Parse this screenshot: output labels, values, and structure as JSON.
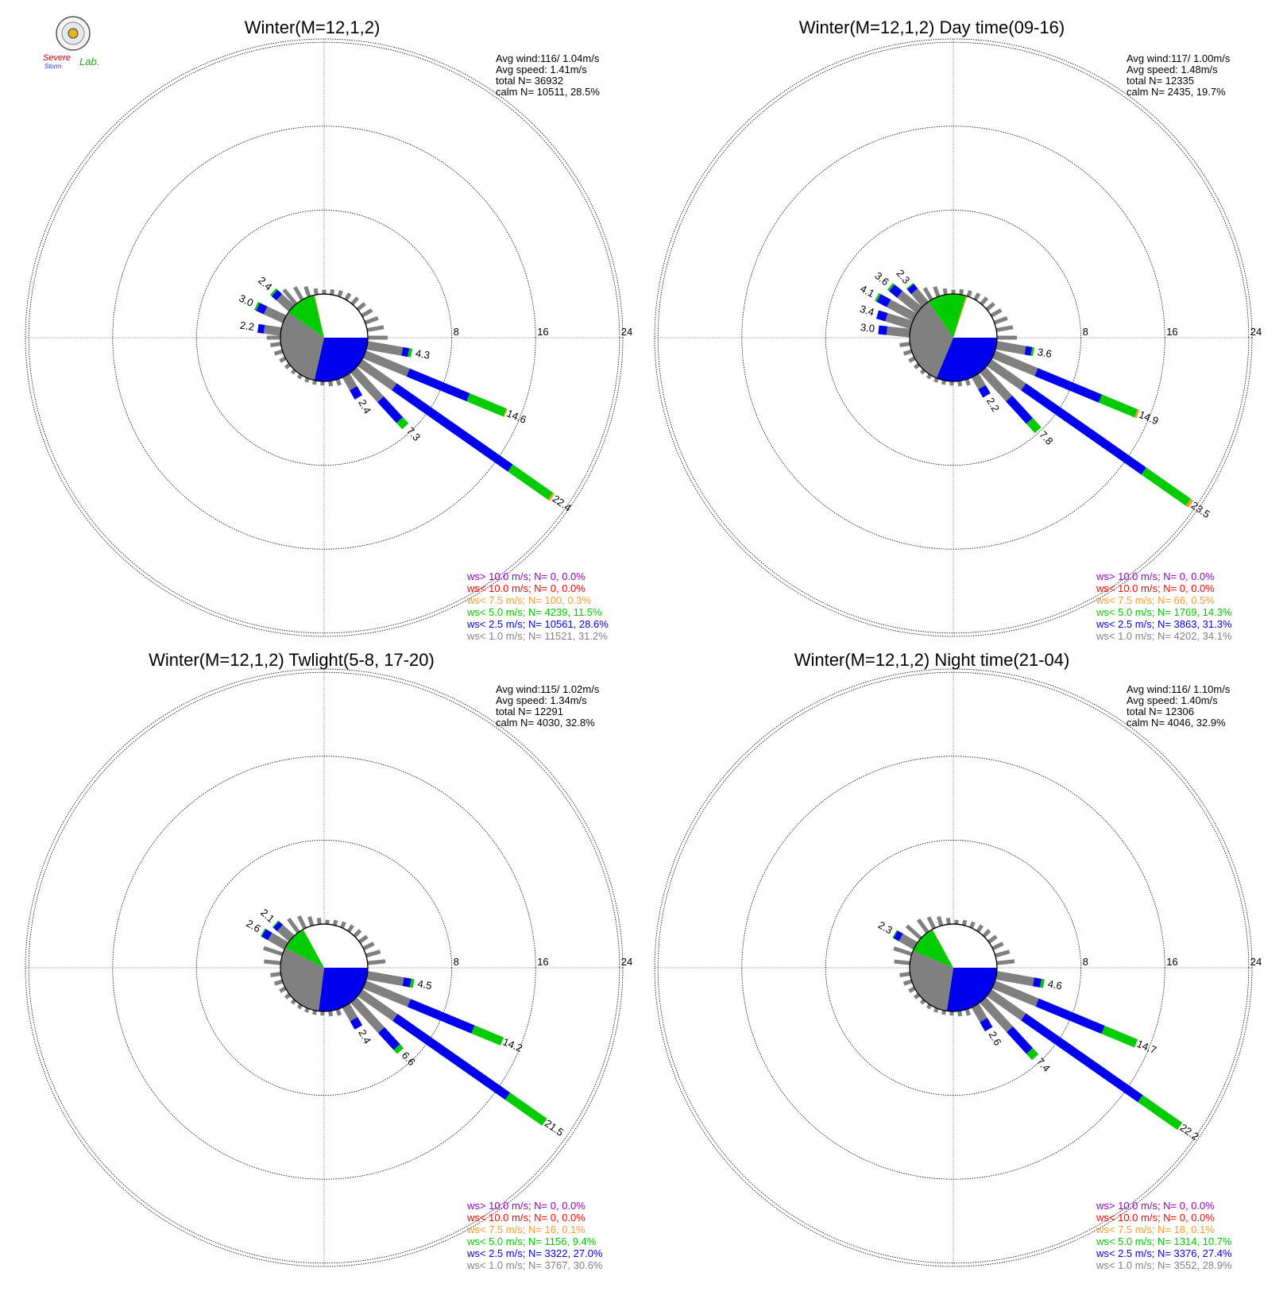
{
  "colors": {
    "calm_fill": "#808080",
    "ws_gt_10": "#9900cc",
    "ws_lt_10": "#ff0000",
    "ws_lt_7_5": "#ff9933",
    "ws_lt_5": "#00cc00",
    "ws_lt_2_5": "#0000ee",
    "ws_lt_1": "#808080",
    "ring": "#000000",
    "axis": "#777777"
  },
  "logo": {
    "text_severe": "Severe",
    "text_storm": "Storm",
    "text_lab": "Lab."
  },
  "chart_data": [
    {
      "type": "wind-rose",
      "title": "Winter(M=12,1,2)",
      "ring_labels": [
        "8",
        "16",
        "24"
      ],
      "stats": [
        "Avg wind:116/ 1.04m/s",
        "Avg speed: 1.41m/s",
        "total N=      36932",
        "calm N=  10511,  28.5%"
      ],
      "calm_pct": 28.5,
      "legend": [
        {
          "key": "ws_gt_10",
          "text": "ws> 10.0 m/s; N=      0,  0.0%"
        },
        {
          "key": "ws_lt_10",
          "text": "ws< 10.0 m/s; N=      0,  0.0%"
        },
        {
          "key": "ws_lt_7_5",
          "text": "ws<  7.5 m/s; N=    100,  0.3%"
        },
        {
          "key": "ws_lt_5",
          "text": "ws<  5.0 m/s; N=  4239, 11.5%"
        },
        {
          "key": "ws_lt_2_5",
          "text": "ws<  2.5 m/s; N= 10561, 28.6%"
        },
        {
          "key": "ws_lt_1",
          "text": "ws<  1.0 m/s; N= 11521, 31.2%"
        }
      ],
      "pie": [
        {
          "key": "ws_lt_2_5",
          "pct": 28.6
        },
        {
          "key": "ws_lt_1",
          "pct": 31.2
        },
        {
          "key": "ws_lt_5",
          "pct": 11.5
        },
        {
          "key": "ws_lt_7_5",
          "pct": 0.3
        }
      ],
      "spokes": [
        {
          "dir": 100,
          "total": 4.3,
          "label": "4.3",
          "parts": [
            3.4,
            0.6,
            0.3,
            0
          ]
        },
        {
          "dir": 112.5,
          "total": 14.6,
          "label": "14.6",
          "parts": [
            4.5,
            6.2,
            3.8,
            0.1
          ]
        },
        {
          "dir": 125,
          "total": 22.4,
          "label": "22.4",
          "parts": [
            4.0,
            13.5,
            4.7,
            0.2
          ]
        },
        {
          "dir": 137.5,
          "total": 7.3,
          "label": "7.3",
          "parts": [
            3.8,
            2.7,
            0.8,
            0
          ]
        },
        {
          "dir": 150,
          "total": 2.4,
          "label": "2.4",
          "parts": [
            1.4,
            1.0,
            0,
            0
          ]
        },
        {
          "dir": 278,
          "total": 2.2,
          "label": "2.2",
          "parts": [
            1.6,
            0.6,
            0,
            0
          ]
        },
        {
          "dir": 295,
          "total": 3.0,
          "label": "3.0",
          "parts": [
            2.0,
            0.8,
            0.2,
            0
          ]
        },
        {
          "dir": 312,
          "total": 2.4,
          "label": "2.4",
          "parts": [
            1.6,
            0.6,
            0.2,
            0
          ]
        }
      ],
      "small_spokes": [
        {
          "dir": 320,
          "value": 1.8
        },
        {
          "dir": 330,
          "value": 1.4
        },
        {
          "dir": 340,
          "value": 1.0
        },
        {
          "dir": 350,
          "value": 0.6
        },
        {
          "dir": 0,
          "value": 0.4
        },
        {
          "dir": 10,
          "value": 0.5
        },
        {
          "dir": 20,
          "value": 0.6
        },
        {
          "dir": 30,
          "value": 0.7
        },
        {
          "dir": 40,
          "value": 0.8
        },
        {
          "dir": 50,
          "value": 0.9
        },
        {
          "dir": 60,
          "value": 1.1
        },
        {
          "dir": 70,
          "value": 1.3
        },
        {
          "dir": 80,
          "value": 1.6
        },
        {
          "dir": 90,
          "value": 1.9
        },
        {
          "dir": 162,
          "value": 0.6
        },
        {
          "dir": 172,
          "value": 0.5
        },
        {
          "dir": 182,
          "value": 0.4
        },
        {
          "dir": 192,
          "value": 0.4
        },
        {
          "dir": 202,
          "value": 0.4
        },
        {
          "dir": 212,
          "value": 0.4
        },
        {
          "dir": 222,
          "value": 0.4
        },
        {
          "dir": 232,
          "value": 0.5
        },
        {
          "dir": 242,
          "value": 0.6
        },
        {
          "dir": 252,
          "value": 0.8
        },
        {
          "dir": 262,
          "value": 1.0
        },
        {
          "dir": 270,
          "value": 1.3
        }
      ]
    },
    {
      "type": "wind-rose",
      "title": "Winter(M=12,1,2) Day time(09-16)",
      "ring_labels": [
        "8",
        "16",
        "24"
      ],
      "stats": [
        "Avg wind:117/ 1.00m/s",
        "Avg speed: 1.48m/s",
        "total N=      12335",
        "calm N=   2435,  19.7%"
      ],
      "calm_pct": 19.7,
      "legend": [
        {
          "key": "ws_gt_10",
          "text": "ws> 10.0 m/s; N=      0,  0.0%"
        },
        {
          "key": "ws_lt_10",
          "text": "ws< 10.0 m/s; N=      0,  0.0%"
        },
        {
          "key": "ws_lt_7_5",
          "text": "ws<  7.5 m/s; N=     66,  0.5%"
        },
        {
          "key": "ws_lt_5",
          "text": "ws<  5.0 m/s; N=  1769, 14.3%"
        },
        {
          "key": "ws_lt_2_5",
          "text": "ws<  2.5 m/s; N=  3863, 31.3%"
        },
        {
          "key": "ws_lt_1",
          "text": "ws<  1.0 m/s; N=  4202, 34.1%"
        }
      ],
      "pie": [
        {
          "key": "ws_lt_2_5",
          "pct": 31.3
        },
        {
          "key": "ws_lt_1",
          "pct": 34.1
        },
        {
          "key": "ws_lt_5",
          "pct": 14.3
        },
        {
          "key": "ws_lt_7_5",
          "pct": 0.5
        }
      ],
      "spokes": [
        {
          "dir": 100,
          "total": 3.6,
          "label": "3.6",
          "parts": [
            2.8,
            0.6,
            0.2,
            0
          ]
        },
        {
          "dir": 112.5,
          "total": 14.9,
          "label": "14.9",
          "parts": [
            4.4,
            6.6,
            3.7,
            0.2
          ]
        },
        {
          "dir": 125,
          "total": 23.5,
          "label": "23.5",
          "parts": [
            4.0,
            14.0,
            5.2,
            0.3
          ]
        },
        {
          "dir": 137.5,
          "total": 7.8,
          "label": "7.8",
          "parts": [
            3.7,
            2.9,
            1.2,
            0
          ]
        },
        {
          "dir": 150,
          "total": 2.2,
          "label": "2.2",
          "parts": [
            1.3,
            0.9,
            0,
            0
          ]
        },
        {
          "dir": 276,
          "total": 3.0,
          "label": "3.0",
          "parts": [
            2.2,
            0.8,
            0,
            0
          ]
        },
        {
          "dir": 287,
          "total": 3.4,
          "label": "3.4",
          "parts": [
            2.5,
            0.9,
            0,
            0
          ]
        },
        {
          "dir": 298,
          "total": 4.1,
          "label": "4.1",
          "parts": [
            2.8,
            1.1,
            0.2,
            0
          ]
        },
        {
          "dir": 309,
          "total": 3.6,
          "label": "3.6",
          "parts": [
            2.4,
            1.0,
            0.2,
            0
          ]
        },
        {
          "dir": 320,
          "total": 2.3,
          "label": "2.3",
          "parts": [
            1.6,
            0.6,
            0.1,
            0
          ]
        }
      ],
      "small_spokes": [
        {
          "dir": 330,
          "value": 1.3
        },
        {
          "dir": 340,
          "value": 1.0
        },
        {
          "dir": 350,
          "value": 0.6
        },
        {
          "dir": 0,
          "value": 0.4
        },
        {
          "dir": 10,
          "value": 0.5
        },
        {
          "dir": 20,
          "value": 0.6
        },
        {
          "dir": 30,
          "value": 0.7
        },
        {
          "dir": 40,
          "value": 0.8
        },
        {
          "dir": 50,
          "value": 0.9
        },
        {
          "dir": 60,
          "value": 1.1
        },
        {
          "dir": 70,
          "value": 1.3
        },
        {
          "dir": 80,
          "value": 1.6
        },
        {
          "dir": 90,
          "value": 1.9
        },
        {
          "dir": 162,
          "value": 0.6
        },
        {
          "dir": 172,
          "value": 0.5
        },
        {
          "dir": 182,
          "value": 0.4
        },
        {
          "dir": 192,
          "value": 0.4
        },
        {
          "dir": 202,
          "value": 0.4
        },
        {
          "dir": 212,
          "value": 0.4
        },
        {
          "dir": 222,
          "value": 0.4
        },
        {
          "dir": 232,
          "value": 0.5
        },
        {
          "dir": 242,
          "value": 0.6
        },
        {
          "dir": 252,
          "value": 0.8
        },
        {
          "dir": 262,
          "value": 1.0
        }
      ]
    },
    {
      "type": "wind-rose",
      "title": "Winter(M=12,1,2) Twlight(5-8, 17-20)",
      "ring_labels": [
        "8",
        "16",
        "24"
      ],
      "stats": [
        "Avg wind:115/ 1.02m/s",
        "Avg speed: 1.34m/s",
        "total N=      12291",
        "calm N=   4030,  32.8%"
      ],
      "calm_pct": 32.8,
      "legend": [
        {
          "key": "ws_gt_10",
          "text": "ws> 10.0 m/s; N=      0,  0.0%"
        },
        {
          "key": "ws_lt_10",
          "text": "ws< 10.0 m/s; N=      0,  0.0%"
        },
        {
          "key": "ws_lt_7_5",
          "text": "ws<  7.5 m/s; N=     16,  0.1%"
        },
        {
          "key": "ws_lt_5",
          "text": "ws<  5.0 m/s; N=  1156,  9.4%"
        },
        {
          "key": "ws_lt_2_5",
          "text": "ws<  2.5 m/s; N=  3322, 27.0%"
        },
        {
          "key": "ws_lt_1",
          "text": "ws<  1.0 m/s; N=  3767, 30.6%"
        }
      ],
      "pie": [
        {
          "key": "ws_lt_2_5",
          "pct": 27.0
        },
        {
          "key": "ws_lt_1",
          "pct": 30.6
        },
        {
          "key": "ws_lt_5",
          "pct": 9.4
        },
        {
          "key": "ws_lt_7_5",
          "pct": 0.1
        }
      ],
      "spokes": [
        {
          "dir": 100,
          "total": 4.5,
          "label": "4.5",
          "parts": [
            3.5,
            0.7,
            0.3,
            0
          ]
        },
        {
          "dir": 112.5,
          "total": 14.2,
          "label": "14.2",
          "parts": [
            4.6,
            6.6,
            3.0,
            0
          ]
        },
        {
          "dir": 125,
          "total": 21.5,
          "label": "21.5",
          "parts": [
            4.1,
            13.1,
            4.3,
            0
          ]
        },
        {
          "dir": 137.5,
          "total": 6.6,
          "label": "6.6",
          "parts": [
            3.9,
            2.2,
            0.5,
            0
          ]
        },
        {
          "dir": 150,
          "total": 2.4,
          "label": "2.4",
          "parts": [
            1.5,
            0.9,
            0,
            0
          ]
        },
        {
          "dir": 300,
          "total": 2.6,
          "label": "2.6",
          "parts": [
            1.8,
            0.7,
            0.1,
            0
          ]
        },
        {
          "dir": 312,
          "total": 2.1,
          "label": "2.1",
          "parts": [
            1.5,
            0.5,
            0.1,
            0
          ]
        }
      ],
      "small_spokes": [
        {
          "dir": 276,
          "value": 1.6
        },
        {
          "dir": 288,
          "value": 1.9
        },
        {
          "dir": 324,
          "value": 1.6
        },
        {
          "dir": 334,
          "value": 1.3
        },
        {
          "dir": 344,
          "value": 0.9
        },
        {
          "dir": 354,
          "value": 0.6
        },
        {
          "dir": 4,
          "value": 0.4
        },
        {
          "dir": 14,
          "value": 0.5
        },
        {
          "dir": 24,
          "value": 0.6
        },
        {
          "dir": 34,
          "value": 0.7
        },
        {
          "dir": 44,
          "value": 0.8
        },
        {
          "dir": 54,
          "value": 0.9
        },
        {
          "dir": 64,
          "value": 1.1
        },
        {
          "dir": 74,
          "value": 1.4
        },
        {
          "dir": 84,
          "value": 1.7
        },
        {
          "dir": 162,
          "value": 0.6
        },
        {
          "dir": 172,
          "value": 0.5
        },
        {
          "dir": 182,
          "value": 0.4
        },
        {
          "dir": 192,
          "value": 0.4
        },
        {
          "dir": 202,
          "value": 0.4
        },
        {
          "dir": 212,
          "value": 0.4
        },
        {
          "dir": 222,
          "value": 0.4
        },
        {
          "dir": 232,
          "value": 0.5
        },
        {
          "dir": 242,
          "value": 0.6
        },
        {
          "dir": 252,
          "value": 0.8
        },
        {
          "dir": 262,
          "value": 1.0
        }
      ]
    },
    {
      "type": "wind-rose",
      "title": "Winter(M=12,1,2) Night time(21-04)",
      "ring_labels": [
        "8",
        "16",
        "24"
      ],
      "stats": [
        "Avg wind:116/ 1.10m/s",
        "Avg speed: 1.40m/s",
        "total N=      12306",
        "calm N=   4046,  32.9%"
      ],
      "calm_pct": 32.9,
      "legend": [
        {
          "key": "ws_gt_10",
          "text": "ws> 10.0 m/s; N=      0,  0.0%"
        },
        {
          "key": "ws_lt_10",
          "text": "ws< 10.0 m/s; N=      0,  0.0%"
        },
        {
          "key": "ws_lt_7_5",
          "text": "ws<  7.5 m/s; N=     18,  0.1%"
        },
        {
          "key": "ws_lt_5",
          "text": "ws<  5.0 m/s; N=  1314, 10.7%"
        },
        {
          "key": "ws_lt_2_5",
          "text": "ws<  2.5 m/s; N=  3376, 27.4%"
        },
        {
          "key": "ws_lt_1",
          "text": "ws<  1.0 m/s; N=  3552, 28.9%"
        }
      ],
      "pie": [
        {
          "key": "ws_lt_2_5",
          "pct": 27.4
        },
        {
          "key": "ws_lt_1",
          "pct": 28.9
        },
        {
          "key": "ws_lt_5",
          "pct": 10.7
        },
        {
          "key": "ws_lt_7_5",
          "pct": 0.1
        }
      ],
      "spokes": [
        {
          "dir": 100,
          "total": 4.6,
          "label": "4.6",
          "parts": [
            3.6,
            0.7,
            0.3,
            0
          ]
        },
        {
          "dir": 112.5,
          "total": 14.7,
          "label": "14.7",
          "parts": [
            4.5,
            6.8,
            3.4,
            0
          ]
        },
        {
          "dir": 125,
          "total": 22.2,
          "label": "22.2",
          "parts": [
            4.0,
            13.6,
            4.6,
            0
          ]
        },
        {
          "dir": 137.5,
          "total": 7.4,
          "label": "7.4",
          "parts": [
            3.8,
            2.8,
            0.8,
            0
          ]
        },
        {
          "dir": 150,
          "total": 2.6,
          "label": "2.6",
          "parts": [
            1.6,
            1.0,
            0,
            0
          ]
        },
        {
          "dir": 300,
          "total": 2.3,
          "label": "2.3",
          "parts": [
            1.6,
            0.6,
            0.1,
            0
          ]
        }
      ],
      "small_spokes": [
        {
          "dir": 276,
          "value": 1.5
        },
        {
          "dir": 288,
          "value": 1.8
        },
        {
          "dir": 312,
          "value": 1.8
        },
        {
          "dir": 324,
          "value": 1.5
        },
        {
          "dir": 334,
          "value": 1.2
        },
        {
          "dir": 344,
          "value": 0.9
        },
        {
          "dir": 354,
          "value": 0.6
        },
        {
          "dir": 4,
          "value": 0.4
        },
        {
          "dir": 14,
          "value": 0.5
        },
        {
          "dir": 24,
          "value": 0.6
        },
        {
          "dir": 34,
          "value": 0.7
        },
        {
          "dir": 44,
          "value": 0.8
        },
        {
          "dir": 54,
          "value": 0.9
        },
        {
          "dir": 64,
          "value": 1.1
        },
        {
          "dir": 74,
          "value": 1.4
        },
        {
          "dir": 84,
          "value": 1.7
        },
        {
          "dir": 162,
          "value": 0.6
        },
        {
          "dir": 172,
          "value": 0.5
        },
        {
          "dir": 182,
          "value": 0.4
        },
        {
          "dir": 192,
          "value": 0.4
        },
        {
          "dir": 202,
          "value": 0.4
        },
        {
          "dir": 212,
          "value": 0.4
        },
        {
          "dir": 222,
          "value": 0.4
        },
        {
          "dir": 232,
          "value": 0.5
        },
        {
          "dir": 242,
          "value": 0.6
        },
        {
          "dir": 252,
          "value": 0.8
        },
        {
          "dir": 262,
          "value": 1.0
        }
      ]
    }
  ]
}
